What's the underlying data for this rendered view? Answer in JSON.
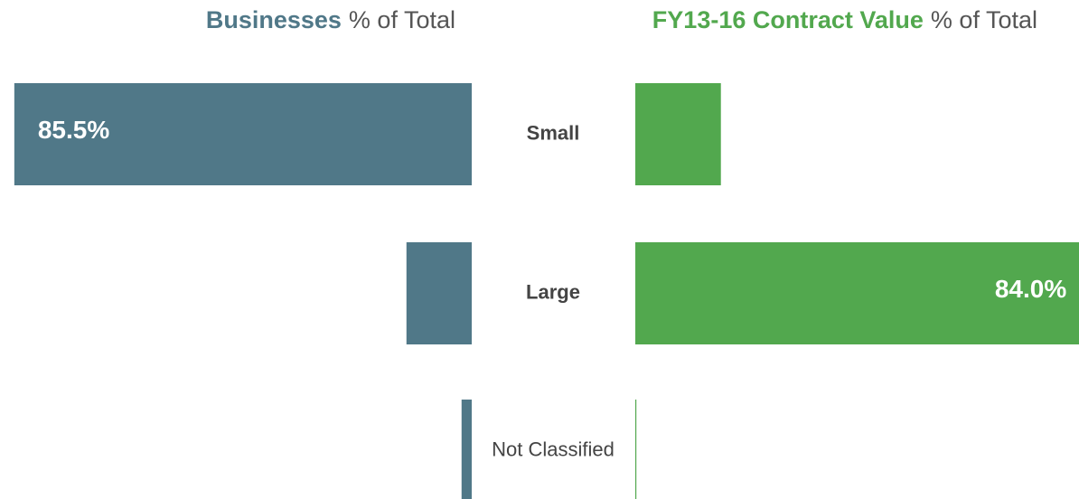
{
  "chart_data": {
    "type": "bar",
    "orientation": "butterfly",
    "categories": [
      "Small",
      "Large",
      "Not Classified"
    ],
    "xlim": [
      0,
      100
    ],
    "series": [
      {
        "name": "Businesses",
        "title_rest": "% of Total",
        "color": "#507888",
        "values": [
          85.5,
          12.2,
          1.9
        ],
        "value_labels": [
          "85.5%",
          null,
          null
        ]
      },
      {
        "name": "FY13-16 Contract Value",
        "title_rest": "% of Total",
        "color": "#52a84e",
        "values": [
          16.0,
          84.0,
          0.2
        ],
        "value_labels": [
          null,
          "84.0%",
          null
        ]
      }
    ]
  }
}
